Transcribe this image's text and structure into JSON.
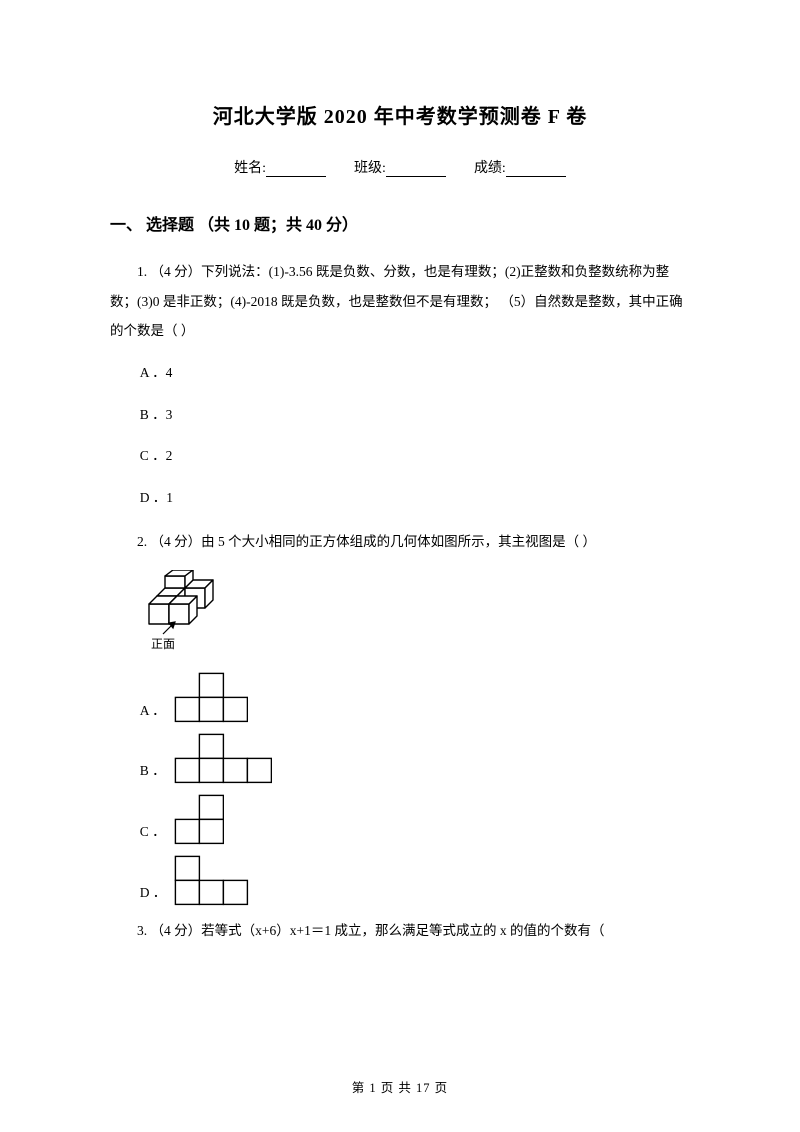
{
  "title": "河北大学版 2020 年中考数学预测卷 F 卷",
  "info": {
    "name_label": "姓名:",
    "class_label": "班级:",
    "score_label": "成绩:"
  },
  "section": {
    "heading": "一、 选择题 （共 10 题；共 40 分）"
  },
  "q1": {
    "text": "1.  （4 分）下列说法：(1)‐3.56  既是负数、分数，也是有理数；(2)正整数和负整数统称为整数；(3)0  是非正数；(4)‐2018  既是负数，也是整数但不是有理数； （5）自然数是整数，其中正确的个数是（    ）",
    "a": "A ．4",
    "b": "B ．3",
    "c": "C ．2",
    "d": "D ．1"
  },
  "q2": {
    "text": "2. （4 分）由 5 个大小相同的正方体组成的几何体如图所示，其主视图是（    ）",
    "front_label": "正面",
    "a": "A ．",
    "b": "B ．",
    "c": "C ．",
    "d": "D ．",
    "figure": {
      "cell": 24,
      "stroke": "#000000",
      "stroke_width": 1.4
    },
    "opt_shapes": {
      "A": {
        "cols": 3,
        "rows": 2,
        "cells": [
          [
            1,
            0
          ],
          [
            0,
            1
          ],
          [
            1,
            1
          ],
          [
            2,
            1
          ]
        ]
      },
      "B": {
        "cols": 4,
        "rows": 2,
        "cells": [
          [
            1,
            0
          ],
          [
            0,
            1
          ],
          [
            1,
            1
          ],
          [
            2,
            1
          ],
          [
            3,
            1
          ]
        ]
      },
      "C": {
        "cols": 2,
        "rows": 2,
        "cells": [
          [
            1,
            0
          ],
          [
            0,
            1
          ],
          [
            1,
            1
          ]
        ]
      },
      "D": {
        "cols": 3,
        "rows": 2,
        "cells": [
          [
            0,
            0
          ],
          [
            0,
            1
          ],
          [
            1,
            1
          ],
          [
            2,
            1
          ]
        ]
      }
    }
  },
  "q3": {
    "text": "3.      （4 分）若等式（x+6）x+1＝1 成立，那么满足等式成立的 x 的值的个数有（"
  },
  "footer": {
    "text": "第 1 页 共 17 页"
  },
  "colors": {
    "text": "#000000",
    "bg": "#ffffff"
  }
}
